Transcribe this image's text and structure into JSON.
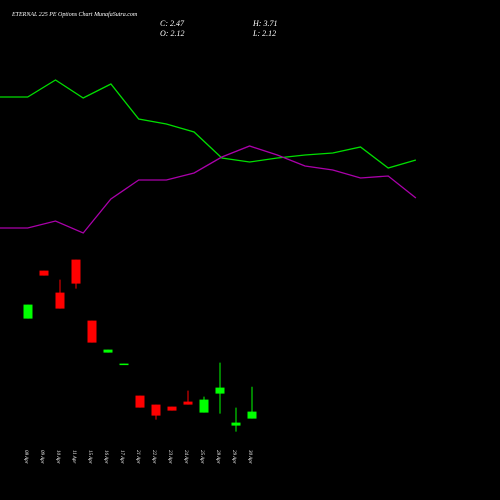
{
  "chart_data": [
    {
      "type": "candlestick",
      "title": "ETERNAL 225 PE Options Chart MunafaSutra.com",
      "info": {
        "close": "C: 2.47",
        "high": "H: 3.71",
        "open": "O: 2.12",
        "low": "L: 2.12"
      },
      "categories": [
        "08 Apr",
        "09 Apr",
        "10 Apr",
        "11 Apr",
        "15 Apr",
        "16 Apr",
        "17 Apr",
        "21 Apr",
        "22 Apr",
        "23 Apr",
        "24 Apr",
        "25 Apr",
        "28 Apr",
        "29 Apr",
        "30 Apr"
      ],
      "open": [
        7.12,
        9.52,
        8.42,
        10.07,
        7.02,
        5.42,
        4.82,
        3.27,
        2.82,
        2.72,
        2.97,
        2.42,
        3.37,
        1.77,
        2.12
      ],
      "high": [
        7.82,
        9.52,
        9.07,
        10.07,
        7.02,
        5.57,
        4.87,
        3.27,
        2.82,
        2.72,
        3.52,
        3.22,
        4.92,
        2.67,
        3.71
      ],
      "low": [
        7.12,
        9.27,
        7.62,
        8.62,
        5.92,
        5.42,
        4.82,
        2.67,
        2.07,
        2.52,
        2.82,
        2.42,
        2.37,
        1.47,
        2.12
      ],
      "close": [
        7.82,
        9.27,
        7.62,
        8.87,
        5.92,
        5.57,
        4.87,
        2.67,
        2.27,
        2.52,
        2.82,
        3.07,
        3.67,
        1.92,
        2.47
      ],
      "up_color": "#00ff00",
      "down_color": "#ff0000",
      "ylim": [
        1,
        10.5
      ]
    },
    {
      "type": "line",
      "series": [
        {
          "color": "#00dd00",
          "values": [
            80.6,
            80.6,
            84,
            80.4,
            83.2,
            76.2,
            75.2,
            73.6,
            68.4,
            67.6,
            68.4,
            69,
            69.4,
            70.6,
            66.4,
            68
          ]
        },
        {
          "color": "#aa00aa",
          "values": [
            54.4,
            54.4,
            55.8,
            53.4,
            60.2,
            64,
            64,
            65.4,
            68.6,
            70.8,
            69,
            66.8,
            66,
            64.4,
            64.8,
            60.4
          ]
        }
      ],
      "ylim": [
        0,
        100
      ]
    }
  ]
}
